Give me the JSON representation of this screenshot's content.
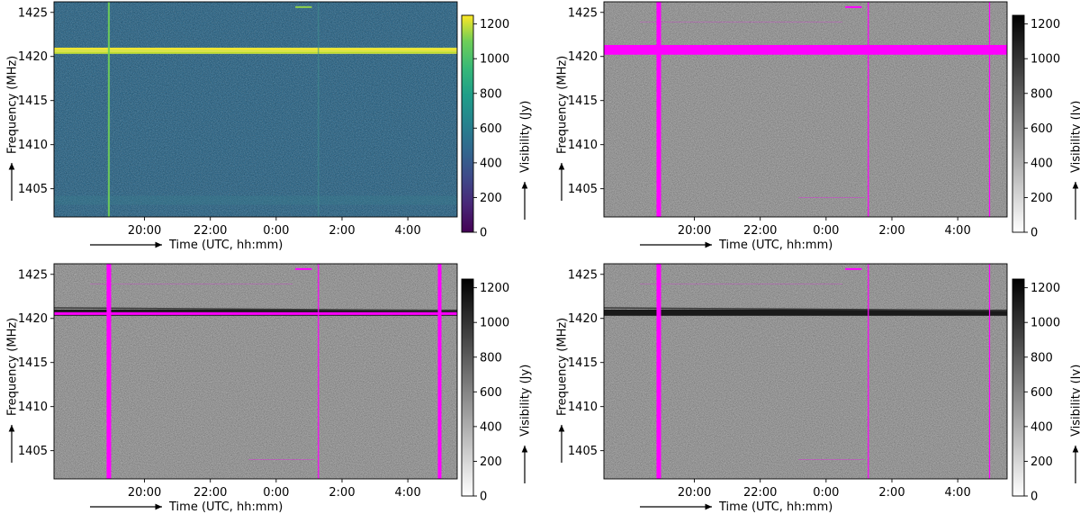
{
  "chart_data": [
    {
      "type": "heatmap",
      "panel": "top-left",
      "colormap": "viridis",
      "xlabel": "Time (UTC, hh:mm)",
      "ylabel": "Frequency (MHz)",
      "colorbar_label": "Visibility (Jy)",
      "x_ticks": [
        "20:00",
        "22:00",
        "0:00",
        "2:00",
        "4:00"
      ],
      "y_ticks": [
        "1425",
        "1420",
        "1415",
        "1410",
        "1405"
      ],
      "colorbar_ticks": [
        "0",
        "200",
        "400",
        "600",
        "800",
        "1000",
        "1200"
      ],
      "ylim": [
        1401.8,
        1426.2
      ],
      "colorbar_range": [
        0,
        1250
      ],
      "features": {
        "hi_band_mhz": [
          1420.3,
          1421.0
        ],
        "vertical_lines_utc": [
          "18:55",
          "1:17"
        ],
        "short_burst": {
          "freq_mhz": 1425.6,
          "start_utc": "0:35",
          "end_utc": "1:05"
        }
      },
      "flagged": false
    },
    {
      "type": "heatmap",
      "panel": "top-right",
      "colormap": "gray_r",
      "xlabel": "Time (UTC, hh:mm)",
      "ylabel": "Frequency (MHz)",
      "colorbar_label": "Visibility (Jy)",
      "x_ticks": [
        "20:00",
        "22:00",
        "0:00",
        "2:00",
        "4:00"
      ],
      "y_ticks": [
        "1425",
        "1420",
        "1415",
        "1410",
        "1405"
      ],
      "colorbar_ticks": [
        "0",
        "200",
        "400",
        "600",
        "800",
        "1000",
        "1200"
      ],
      "ylim": [
        1401.8,
        1426.2
      ],
      "colorbar_range": [
        0,
        1250
      ],
      "flag_color": "#ff00ff",
      "flags": {
        "band_mhz": [
          1420.2,
          1421.3
        ],
        "vertical_lines_utc": [
          "18:55",
          "1:17",
          "4:58"
        ]
      },
      "flagged": true
    },
    {
      "type": "heatmap",
      "panel": "bottom-left",
      "colormap": "gray_r",
      "xlabel": "Time (UTC, hh:mm)",
      "ylabel": "Frequency (MHz)",
      "colorbar_label": "Visibility (Jy)",
      "x_ticks": [
        "20:00",
        "22:00",
        "0:00",
        "2:00",
        "4:00"
      ],
      "y_ticks": [
        "1425",
        "1420",
        "1415",
        "1410",
        "1405"
      ],
      "colorbar_ticks": [
        "0",
        "200",
        "400",
        "600",
        "800",
        "1000",
        "1200"
      ],
      "ylim": [
        1401.8,
        1426.2
      ],
      "colorbar_range": [
        0,
        1250
      ],
      "flag_color": "#ff00ff",
      "flags": {
        "band_mhz": [
          1420.4,
          1420.7
        ],
        "vertical_lines_utc": [
          "18:55",
          "1:17",
          "4:58"
        ]
      },
      "flagged": true
    },
    {
      "type": "heatmap",
      "panel": "bottom-right",
      "colormap": "gray_r",
      "xlabel": "Time (UTC, hh:mm)",
      "ylabel": "Frequency (MHz)",
      "colorbar_label": "Visibility (Jy)",
      "x_ticks": [
        "20:00",
        "22:00",
        "0:00",
        "2:00",
        "4:00"
      ],
      "y_ticks": [
        "1425",
        "1420",
        "1415",
        "1410",
        "1405"
      ],
      "colorbar_ticks": [
        "0",
        "200",
        "400",
        "600",
        "800",
        "1000",
        "1200"
      ],
      "ylim": [
        1401.8,
        1426.2
      ],
      "colorbar_range": [
        0,
        1250
      ],
      "flag_color": "#ff00ff",
      "flags": {
        "band_mhz": null,
        "vertical_lines_utc": [
          "18:55",
          "1:17",
          "4:58"
        ]
      },
      "flagged": true
    }
  ]
}
